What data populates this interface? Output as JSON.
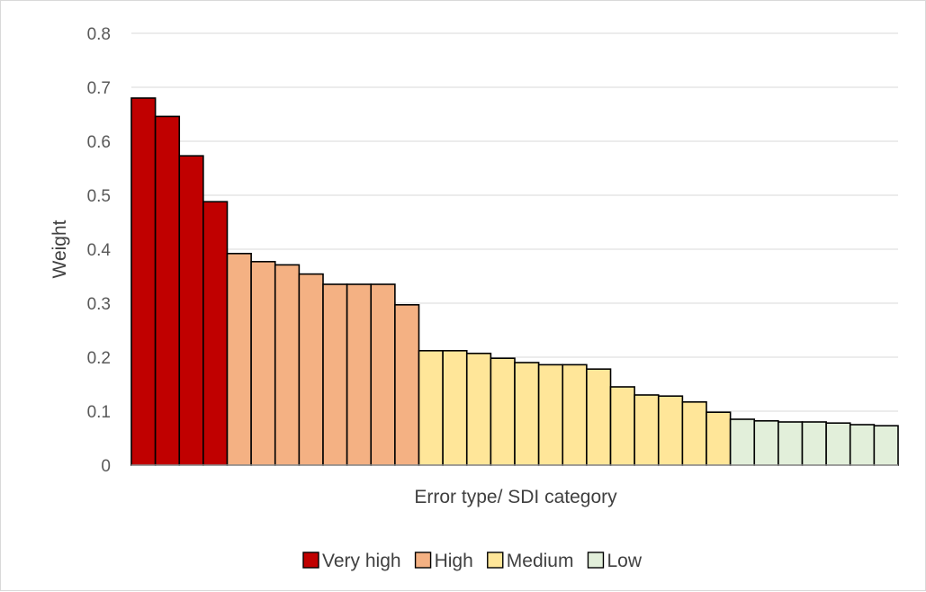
{
  "chart_data": {
    "type": "bar",
    "title": "",
    "xlabel": "Error type/ SDI category",
    "ylabel": "Weight",
    "ylim": [
      0,
      0.8
    ],
    "yticks": [
      "0",
      "0.1",
      "0.2",
      "0.3",
      "0.4",
      "0.5",
      "0.6",
      "0.7",
      "0.8"
    ],
    "grid": true,
    "legend_position": "bottom",
    "categories": [
      {
        "name": "Very high",
        "color": "#c00000"
      },
      {
        "name": "High",
        "color": "#f4b183"
      },
      {
        "name": "Medium",
        "color": "#ffe699"
      },
      {
        "name": "Low",
        "color": "#e2efda"
      }
    ],
    "bars": [
      {
        "value": 0.68,
        "category": "Very high"
      },
      {
        "value": 0.646,
        "category": "Very high"
      },
      {
        "value": 0.573,
        "category": "Very high"
      },
      {
        "value": 0.488,
        "category": "Very high"
      },
      {
        "value": 0.392,
        "category": "High"
      },
      {
        "value": 0.377,
        "category": "High"
      },
      {
        "value": 0.371,
        "category": "High"
      },
      {
        "value": 0.354,
        "category": "High"
      },
      {
        "value": 0.335,
        "category": "High"
      },
      {
        "value": 0.335,
        "category": "High"
      },
      {
        "value": 0.335,
        "category": "High"
      },
      {
        "value": 0.297,
        "category": "High"
      },
      {
        "value": 0.212,
        "category": "Medium"
      },
      {
        "value": 0.212,
        "category": "Medium"
      },
      {
        "value": 0.207,
        "category": "Medium"
      },
      {
        "value": 0.198,
        "category": "Medium"
      },
      {
        "value": 0.19,
        "category": "Medium"
      },
      {
        "value": 0.186,
        "category": "Medium"
      },
      {
        "value": 0.186,
        "category": "Medium"
      },
      {
        "value": 0.178,
        "category": "Medium"
      },
      {
        "value": 0.145,
        "category": "Medium"
      },
      {
        "value": 0.13,
        "category": "Medium"
      },
      {
        "value": 0.128,
        "category": "Medium"
      },
      {
        "value": 0.117,
        "category": "Medium"
      },
      {
        "value": 0.098,
        "category": "Medium"
      },
      {
        "value": 0.085,
        "category": "Low"
      },
      {
        "value": 0.082,
        "category": "Low"
      },
      {
        "value": 0.08,
        "category": "Low"
      },
      {
        "value": 0.08,
        "category": "Low"
      },
      {
        "value": 0.078,
        "category": "Low"
      },
      {
        "value": 0.075,
        "category": "Low"
      },
      {
        "value": 0.073,
        "category": "Low"
      }
    ]
  }
}
